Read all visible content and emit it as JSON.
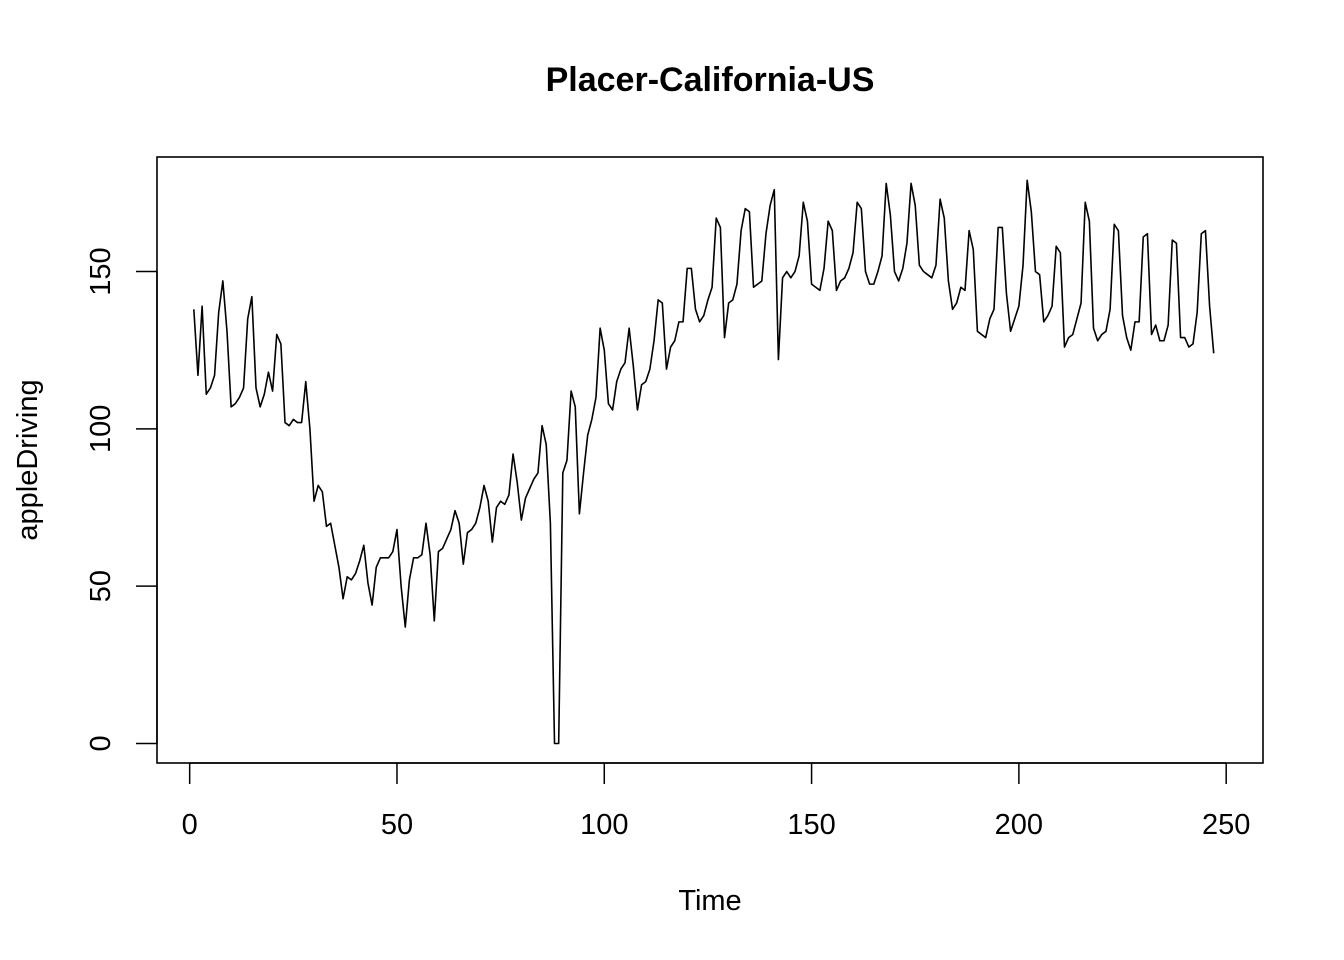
{
  "chart_data": {
    "type": "line",
    "title": "Placer-California-US",
    "xlabel": "Time",
    "ylabel": "appleDriving",
    "xlim": [
      -7.88,
      258.88
    ],
    "ylim": [
      -6.2,
      186.4
    ],
    "x_ticks": [
      0,
      50,
      100,
      150,
      200,
      250
    ],
    "y_ticks": [
      0,
      50,
      100,
      150
    ],
    "grid": false,
    "legend": "none",
    "line_color": "#000000",
    "series": [
      {
        "x_start": 1,
        "values": [
          138,
          117,
          139,
          111,
          113,
          117,
          137,
          147,
          131,
          107,
          108,
          110,
          113,
          135,
          142,
          113,
          107,
          111,
          118,
          112,
          130,
          127,
          102,
          101,
          103,
          102,
          102,
          115,
          100,
          77,
          82,
          80,
          69,
          70,
          63,
          56,
          46,
          53,
          52,
          54,
          58,
          63,
          51,
          44,
          56,
          59,
          59,
          59,
          61,
          68,
          50,
          37,
          52,
          59,
          59,
          60,
          70,
          60,
          39,
          61,
          62,
          65,
          68,
          74,
          70,
          57,
          67,
          68,
          70,
          75,
          82,
          77,
          64,
          75,
          77,
          76,
          79,
          92,
          83,
          71,
          78,
          81,
          84,
          86,
          101,
          95,
          70,
          0,
          0,
          86,
          90,
          112,
          107,
          73,
          86,
          98,
          103,
          110,
          132,
          125,
          108,
          106,
          115,
          119,
          121,
          132,
          120,
          106,
          114,
          115,
          119,
          128,
          141,
          140,
          119,
          126,
          128,
          134,
          134,
          151,
          151,
          138,
          134,
          136,
          141,
          145,
          167,
          164,
          129,
          140,
          141,
          146,
          163,
          170,
          169,
          145,
          146,
          147,
          162,
          171,
          176,
          122,
          148,
          150,
          148,
          150,
          155,
          172,
          166,
          146,
          145,
          144,
          151,
          166,
          163,
          144,
          147,
          148,
          151,
          156,
          172,
          170,
          150,
          146,
          146,
          150,
          155,
          178,
          168,
          150,
          147,
          151,
          159,
          178,
          171,
          152,
          150,
          149,
          148,
          152,
          173,
          167,
          147,
          138,
          140,
          145,
          144,
          163,
          157,
          131,
          130,
          129,
          135,
          138,
          164,
          164,
          143,
          131,
          135,
          139,
          152,
          179,
          169,
          150,
          149,
          134,
          136,
          139,
          158,
          156,
          126,
          129,
          130,
          135,
          140,
          172,
          166,
          132,
          128,
          130,
          131,
          138,
          165,
          163,
          136,
          129,
          125,
          134,
          134,
          161,
          162,
          130,
          133,
          128,
          128,
          133,
          160,
          159,
          129,
          129,
          126,
          127,
          137,
          162,
          163,
          139,
          124
        ]
      }
    ]
  }
}
